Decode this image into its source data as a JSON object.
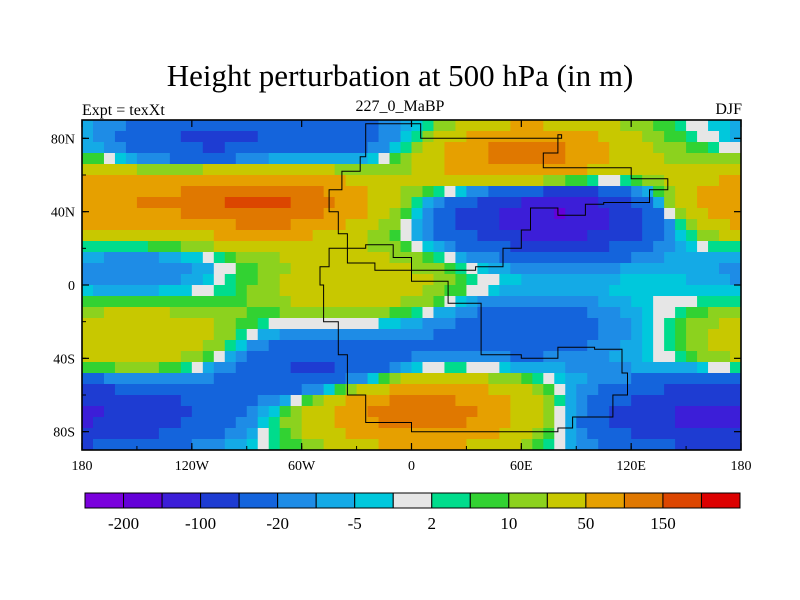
{
  "chart_data": {
    "type": "contour",
    "title": "Height perturbation at 500 hPa (in m)",
    "left_label": "Expt = texXt",
    "center_label": "227_0_MaBP",
    "right_label": "DJF",
    "variable": "Height perturbation at 500 hPa",
    "units": "m",
    "xlim": [
      -180,
      180
    ],
    "ylim": [
      -90,
      90
    ],
    "x_ticks": [
      {
        "value": -180,
        "label": "180"
      },
      {
        "value": -120,
        "label": "120W"
      },
      {
        "value": -60,
        "label": "60W"
      },
      {
        "value": 0,
        "label": "0"
      },
      {
        "value": 60,
        "label": "60E"
      },
      {
        "value": 120,
        "label": "120E"
      },
      {
        "value": 180,
        "label": "180"
      }
    ],
    "y_ticks": [
      {
        "value": 80,
        "label": "80N"
      },
      {
        "value": 40,
        "label": "40N"
      },
      {
        "value": 0,
        "label": "0"
      },
      {
        "value": -40,
        "label": "40S"
      },
      {
        "value": -80,
        "label": "80S"
      }
    ],
    "levels": [
      -200,
      -150,
      -100,
      -50,
      -20,
      -10,
      -5,
      -2,
      2,
      5,
      10,
      20,
      50,
      100,
      150,
      200
    ],
    "colorbar_labels": [
      "-200",
      "-100",
      "-20",
      "-5",
      "2",
      "10",
      "50",
      "150"
    ],
    "colors": [
      "#7a00dc",
      "#6400d8",
      "#3c1ed8",
      "#1e3cd2",
      "#1464dc",
      "#1e8ce6",
      "#14aae6",
      "#00c8dc",
      "#e6e6e6",
      "#00dc8c",
      "#32d232",
      "#8cd21e",
      "#c8c800",
      "#e6a000",
      "#e07800",
      "#dc4600",
      "#dc0000"
    ],
    "features": [
      {
        "type": "low",
        "lon": -110,
        "lat": 78,
        "value": -60
      },
      {
        "type": "low",
        "lon": -20,
        "lat": 78,
        "value": -30
      },
      {
        "type": "high",
        "lon": 60,
        "lat": 70,
        "value": 130
      },
      {
        "type": "high",
        "lon": -80,
        "lat": 45,
        "value": 160
      },
      {
        "type": "high",
        "lon": -175,
        "lat": 45,
        "value": 90
      },
      {
        "type": "low",
        "lon": 80,
        "lat": 38,
        "value": -160
      },
      {
        "type": "low",
        "lon": -150,
        "lat": 10,
        "value": -20
      },
      {
        "type": "high",
        "lon": -30,
        "lat": 0,
        "value": 40
      },
      {
        "type": "low",
        "lon": 60,
        "lat": -25,
        "value": -40
      },
      {
        "type": "low",
        "lon": -50,
        "lat": -45,
        "value": -60
      },
      {
        "type": "high",
        "lon": -150,
        "lat": -30,
        "value": 50
      },
      {
        "type": "high",
        "lon": 5,
        "lat": -70,
        "value": 140
      },
      {
        "type": "low",
        "lon": -150,
        "lat": -70,
        "value": -60
      },
      {
        "type": "low",
        "lon": 150,
        "lat": -72,
        "value": -90
      }
    ]
  }
}
